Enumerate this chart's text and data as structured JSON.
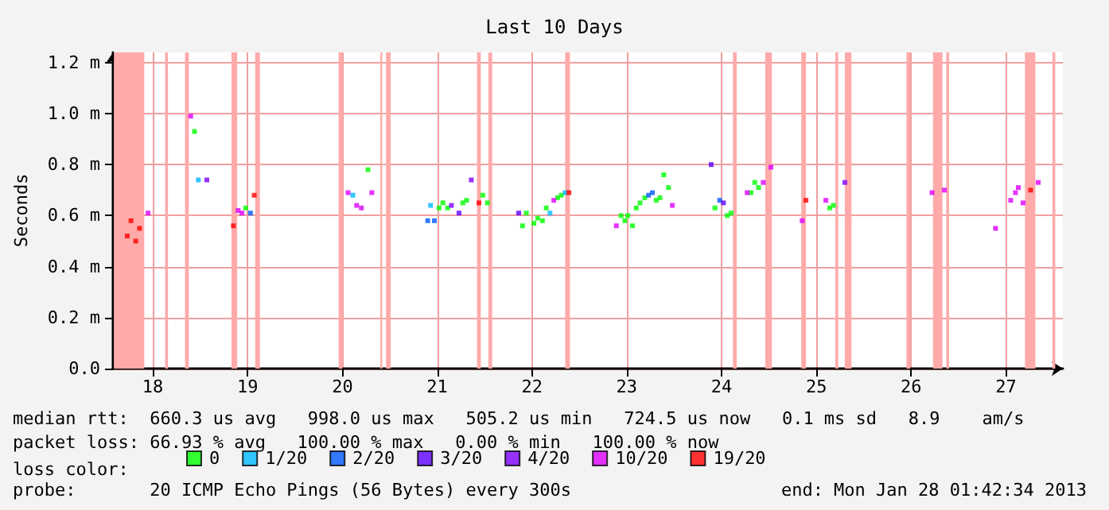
{
  "chart_data": {
    "type": "scatter",
    "title": "Last 10 Days",
    "ylabel": "Seconds",
    "legend_title": "loss color:",
    "legend": "bottom",
    "marker": "square",
    "grid": true,
    "xlim": [
      17.58,
      27.6
    ],
    "xticks": [
      18,
      19,
      20,
      21,
      22,
      23,
      24,
      25,
      26,
      27
    ],
    "ylim": [
      0,
      1.24
    ],
    "yticks": [
      {
        "value": 0,
        "label": "0.0"
      },
      {
        "value": 0.2,
        "label": "0.2 m"
      },
      {
        "value": 0.4,
        "label": "0.4 m"
      },
      {
        "value": 0.6,
        "label": "0.6 m"
      },
      {
        "value": 0.8,
        "label": "0.8 m"
      },
      {
        "value": 1.0,
        "label": "1.0 m"
      },
      {
        "value": 1.2,
        "label": "1.2 m"
      }
    ],
    "series": [
      {
        "name": "0",
        "color": "#00ff00",
        "x": [
          18.44,
          18.98,
          20.27,
          21.02,
          21.06,
          21.11,
          21.27,
          21.31,
          21.48,
          21.53,
          21.9,
          21.94,
          22.02,
          22.06,
          22.11,
          22.15,
          22.27,
          22.31,
          22.94,
          22.98,
          23.01,
          23.06,
          23.1,
          23.14,
          23.19,
          23.31,
          23.35,
          23.39,
          23.44,
          23.93,
          24.06,
          24.1,
          24.31,
          24.35,
          24.39,
          25.14,
          25.18
        ],
        "values": [
          0.93,
          0.63,
          0.78,
          0.63,
          0.65,
          0.63,
          0.65,
          0.66,
          0.68,
          0.65,
          0.56,
          0.61,
          0.57,
          0.59,
          0.58,
          0.63,
          0.67,
          0.68,
          0.6,
          0.58,
          0.6,
          0.56,
          0.63,
          0.65,
          0.67,
          0.66,
          0.67,
          0.76,
          0.71,
          0.63,
          0.6,
          0.61,
          0.69,
          0.73,
          0.71,
          0.63,
          0.64
        ]
      },
      {
        "name": "1/20",
        "color": "#00b8ff",
        "x": [
          18.48,
          20.11,
          20.93,
          22.19,
          22.35
        ],
        "values": [
          0.74,
          0.68,
          0.64,
          0.61,
          0.69
        ]
      },
      {
        "name": "2/20",
        "color": "#0059ff",
        "x": [
          19.03,
          20.9,
          20.97,
          23.23,
          23.27,
          23.98
        ],
        "values": [
          0.61,
          0.58,
          0.58,
          0.68,
          0.69,
          0.66
        ]
      },
      {
        "name": "3/20",
        "color": "#5e00ff",
        "x": [
          21.23,
          21.86,
          23.89,
          24.02
        ],
        "values": [
          0.61,
          0.61,
          0.8,
          0.65
        ]
      },
      {
        "name": "4/20",
        "color": "#7e00ff",
        "x": [
          18.57,
          21.15,
          21.36,
          25.3
        ],
        "values": [
          0.74,
          0.64,
          0.74,
          0.73
        ]
      },
      {
        "name": "10/20",
        "color": "#dd00ff",
        "x": [
          17.95,
          18.4,
          18.9,
          18.94,
          20.06,
          20.15,
          20.2,
          20.31,
          22.23,
          22.89,
          23.48,
          24.27,
          24.44,
          24.52,
          24.85,
          25.1,
          26.22,
          26.35,
          26.89,
          27.05,
          27.1,
          27.13,
          27.18,
          27.34
        ],
        "values": [
          0.61,
          0.99,
          0.62,
          0.61,
          0.69,
          0.64,
          0.63,
          0.69,
          0.66,
          0.56,
          0.64,
          0.69,
          0.73,
          0.79,
          0.58,
          0.66,
          0.69,
          0.7,
          0.55,
          0.66,
          0.69,
          0.71,
          0.65,
          0.73
        ]
      },
      {
        "name": "19/20",
        "color": "#ff0000",
        "x": [
          17.73,
          17.77,
          17.82,
          17.86,
          18.85,
          19.07,
          21.44,
          22.39,
          24.89,
          27.26
        ],
        "values": [
          0.52,
          0.58,
          0.5,
          0.55,
          0.56,
          0.68,
          0.65,
          0.69,
          0.66,
          0.7
        ]
      }
    ],
    "bands": [
      {
        "axis": "x",
        "from": 17.59,
        "to": 17.91,
        "color": "#ffaaaa"
      },
      {
        "axis": "x",
        "from": 18.13,
        "to": 18.16,
        "color": "#ffaaaa"
      },
      {
        "axis": "x",
        "from": 18.34,
        "to": 18.38,
        "color": "#ffaaaa"
      },
      {
        "axis": "x",
        "from": 18.83,
        "to": 18.89,
        "color": "#ffaaaa"
      },
      {
        "axis": "x",
        "from": 19.08,
        "to": 19.13,
        "color": "#ffaaaa"
      },
      {
        "axis": "x",
        "from": 19.96,
        "to": 20.0,
        "color": "#ffaaaa"
      },
      {
        "axis": "x",
        "from": 20.4,
        "to": 20.42,
        "color": "#ffaaaa"
      },
      {
        "axis": "x",
        "from": 20.46,
        "to": 20.51,
        "color": "#ffaaaa"
      },
      {
        "axis": "x",
        "from": 21.42,
        "to": 21.46,
        "color": "#ffaaaa"
      },
      {
        "axis": "x",
        "from": 21.54,
        "to": 21.58,
        "color": "#ffaaaa"
      },
      {
        "axis": "x",
        "from": 22.35,
        "to": 22.4,
        "color": "#ffaaaa"
      },
      {
        "axis": "x",
        "from": 24.12,
        "to": 24.16,
        "color": "#ffaaaa"
      },
      {
        "axis": "x",
        "from": 24.46,
        "to": 24.53,
        "color": "#ffaaaa"
      },
      {
        "axis": "x",
        "from": 24.84,
        "to": 24.89,
        "color": "#ffaaaa"
      },
      {
        "axis": "x",
        "from": 25.2,
        "to": 25.23,
        "color": "#ffaaaa"
      },
      {
        "axis": "x",
        "from": 25.3,
        "to": 25.37,
        "color": "#ffaaaa"
      },
      {
        "axis": "x",
        "from": 25.95,
        "to": 25.99,
        "color": "#ffaaaa"
      },
      {
        "axis": "x",
        "from": 26.23,
        "to": 26.33,
        "color": "#ffaaaa"
      },
      {
        "axis": "x",
        "from": 26.37,
        "to": 26.4,
        "color": "#ffaaaa"
      },
      {
        "axis": "x",
        "from": 27.2,
        "to": 27.31,
        "color": "#ffaaaa"
      },
      {
        "axis": "x",
        "from": 27.49,
        "to": 27.52,
        "color": "#ffaaaa"
      }
    ],
    "annotations": [
      "median rtt:  660.3 us avg   998.0 us max   505.2 us min   724.5 us now   0.1 ms sd   8.9    am/s",
      "packet loss: 66.93 % avg   100.00 % max   0.00 % min   100.00 % now",
      "probe:       20 ICMP Echo Pings (56 Bytes) every 300s",
      "end: Mon Jan 28 01:42:34 2013"
    ]
  }
}
